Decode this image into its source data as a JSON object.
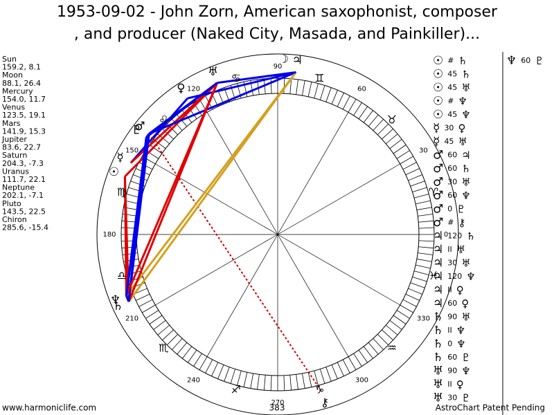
{
  "title_lines": [
    "1953-09-02 - John Zorn, American saxophonist, composer",
    ", and producer (Naked City, Masada, and Painkiller)..."
  ],
  "planets": [
    {
      "name": "Sun",
      "glyph": "☉",
      "label": "159.2, 8.1",
      "lon": 159.2
    },
    {
      "name": "Moon",
      "glyph": "☽",
      "label": "88.1, 26.4",
      "lon": 88.1
    },
    {
      "name": "Mercury",
      "glyph": "☿",
      "label": "154.0, 11.7",
      "lon": 154.0
    },
    {
      "name": "Venus",
      "glyph": "♀",
      "label": "123.5, 19.1",
      "lon": 123.5
    },
    {
      "name": "Mars",
      "glyph": "♂",
      "label": "141.9, 15.3",
      "lon": 141.9
    },
    {
      "name": "Jupiter",
      "glyph": "♃",
      "label": "83.6, 22.7",
      "lon": 83.6
    },
    {
      "name": "Saturn",
      "glyph": "♄",
      "label": "204.3, -7.3",
      "lon": 204.3
    },
    {
      "name": "Uranus",
      "glyph": "♅",
      "label": "111.7, 22.1",
      "lon": 111.7
    },
    {
      "name": "Neptune",
      "glyph": "♆",
      "label": "202.1, -7.1",
      "lon": 202.1
    },
    {
      "name": "Pluto",
      "glyph": "♇",
      "label": "143.5, 22.5",
      "lon": 143.5
    },
    {
      "name": "Chiron",
      "glyph": "⚷",
      "label": "285.6, -15.4",
      "lon": 285.6
    }
  ],
  "degree_ticks": [
    0,
    30,
    60,
    90,
    120,
    150,
    180,
    210,
    240,
    270,
    300,
    330
  ],
  "signs": [
    "♈",
    "♉",
    "♊",
    "♋",
    "♌",
    "♍",
    "♎",
    "♏",
    "♐",
    "♑",
    "♒",
    "♓"
  ],
  "aspects": [
    {
      "p1": "☉",
      "aspect": "#",
      "p2": "♄"
    },
    {
      "p1": "☉",
      "aspect": "45",
      "p2": "♄",
      "line_color": "#e00000"
    },
    {
      "p1": "☉",
      "aspect": "45",
      "p2": "♅",
      "line_color": "#e00000"
    },
    {
      "p1": "☉",
      "aspect": "#",
      "p2": "♆"
    },
    {
      "p1": "☉",
      "aspect": "45",
      "p2": "♆",
      "line_color": "#e00000"
    },
    {
      "p1": "☿",
      "aspect": "30",
      "p2": "♀",
      "line_color": "#0000ee"
    },
    {
      "p1": "☿",
      "aspect": "45",
      "p2": "♅",
      "line_color": "#e00000"
    },
    {
      "p1": "♂",
      "aspect": "60",
      "p2": "♃",
      "line_color": "#0000ee"
    },
    {
      "p1": "♂",
      "aspect": "60",
      "p2": "♄",
      "line_color": "#0000ee"
    },
    {
      "p1": "♂",
      "aspect": "30",
      "p2": "♅",
      "line_color": "#0000ee"
    },
    {
      "p1": "♂",
      "aspect": "60",
      "p2": "♆",
      "line_color": "#0000ee"
    },
    {
      "p1": "♂",
      "aspect": "0",
      "p2": "♇",
      "line_color": "#0000ee"
    },
    {
      "p1": "♂",
      "aspect": "#",
      "p2": "⚷",
      "line_color": "#cc0000",
      "dotted": true
    },
    {
      "p1": "♃",
      "aspect": "120",
      "p2": "♄",
      "line_color": "#d4a020"
    },
    {
      "p1": "♃",
      "aspect": "II",
      "p2": "♅"
    },
    {
      "p1": "♃",
      "aspect": "30",
      "p2": "♅",
      "line_color": "#0000ee"
    },
    {
      "p1": "♃",
      "aspect": "120",
      "p2": "♆",
      "line_color": "#d4a020"
    },
    {
      "p1": "♃",
      "aspect": "II",
      "p2": "♀"
    },
    {
      "p1": "♃",
      "aspect": "60",
      "p2": "♀",
      "line_color": "#0000ee"
    },
    {
      "p1": "♄",
      "aspect": "90",
      "p2": "♅",
      "line_color": "#e00000"
    },
    {
      "p1": "♄",
      "aspect": "II",
      "p2": "♆"
    },
    {
      "p1": "♄",
      "aspect": "0",
      "p2": "♆",
      "line_color": "#0000ee"
    },
    {
      "p1": "♄",
      "aspect": "60",
      "p2": "♇",
      "line_color": "#0000ee"
    },
    {
      "p1": "♅",
      "aspect": "90",
      "p2": "♆",
      "line_color": "#e00000"
    },
    {
      "p1": "♅",
      "aspect": "II",
      "p2": "♀"
    },
    {
      "p1": "♅",
      "aspect": "30",
      "p2": "♇",
      "line_color": "#0000ee"
    }
  ],
  "aspects_extra": [
    {
      "p1": "♆",
      "aspect": "60",
      "p2": "♇",
      "line_color": "#0000ee"
    }
  ],
  "footer": {
    "left": "www.harmoniclife.com",
    "center": "383",
    "right": "AstroChart Patent Pending"
  }
}
